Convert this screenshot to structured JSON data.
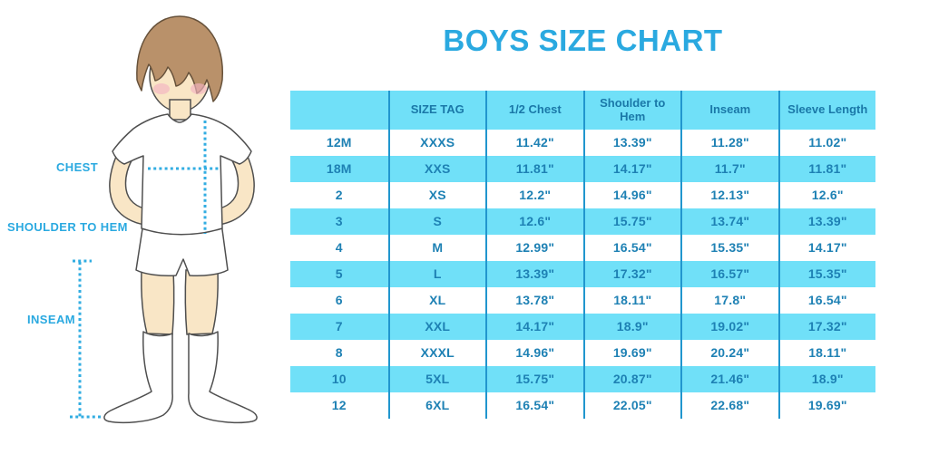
{
  "title": "BOYS SIZE CHART",
  "figure": {
    "illustration": "boy-in-white-tshirt-shorts-and-knee-socks",
    "labels": {
      "chest": "CHEST",
      "shoulder_to_hem": "SHOULDER TO HEM",
      "inseam": "INSEAM"
    }
  },
  "table": {
    "columns": [
      "",
      "SIZE TAG",
      "1/2 Chest",
      "Shoulder to Hem",
      "Inseam",
      "Sleeve Length"
    ],
    "rows": [
      [
        "12M",
        "XXXS",
        "11.42\"",
        "13.39\"",
        "11.28\"",
        "11.02\""
      ],
      [
        "18M",
        "XXS",
        "11.81\"",
        "14.17\"",
        "11.7\"",
        "11.81\""
      ],
      [
        "2",
        "XS",
        "12.2\"",
        "14.96\"",
        "12.13\"",
        "12.6\""
      ],
      [
        "3",
        "S",
        "12.6\"",
        "15.75\"",
        "13.74\"",
        "13.39\""
      ],
      [
        "4",
        "M",
        "12.99\"",
        "16.54\"",
        "15.35\"",
        "14.17\""
      ],
      [
        "5",
        "L",
        "13.39\"",
        "17.32\"",
        "16.57\"",
        "15.35\""
      ],
      [
        "6",
        "XL",
        "13.78\"",
        "18.11\"",
        "17.8\"",
        "16.54\""
      ],
      [
        "7",
        "XXL",
        "14.17\"",
        "18.9\"",
        "19.02\"",
        "17.32\""
      ],
      [
        "8",
        "XXXL",
        "14.96\"",
        "19.69\"",
        "20.24\"",
        "18.11\""
      ],
      [
        "10",
        "5XL",
        "15.75\"",
        "20.87\"",
        "21.46\"",
        "18.9\""
      ],
      [
        "12",
        "6XL",
        "16.54\"",
        "22.05\"",
        "22.68\"",
        "19.69\""
      ]
    ]
  },
  "chart_data": {
    "type": "table",
    "title": "BOYS SIZE CHART",
    "columns": [
      "",
      "SIZE TAG",
      "1/2 Chest",
      "Shoulder to Hem",
      "Inseam",
      "Sleeve Length"
    ],
    "unit": "inches",
    "rows": [
      [
        "12M",
        "XXXS",
        "11.42\"",
        "13.39\"",
        "11.28\"",
        "11.02\""
      ],
      [
        "18M",
        "XXS",
        "11.81\"",
        "14.17\"",
        "11.7\"",
        "11.81\""
      ],
      [
        "2",
        "XS",
        "12.2\"",
        "14.96\"",
        "12.13\"",
        "12.6\""
      ],
      [
        "3",
        "S",
        "12.6\"",
        "15.75\"",
        "13.74\"",
        "13.39\""
      ],
      [
        "4",
        "M",
        "12.99\"",
        "16.54\"",
        "15.35\"",
        "14.17\""
      ],
      [
        "5",
        "L",
        "13.39\"",
        "17.32\"",
        "16.57\"",
        "15.35\""
      ],
      [
        "6",
        "XL",
        "13.78\"",
        "18.11\"",
        "17.8\"",
        "16.54\""
      ],
      [
        "7",
        "XXL",
        "14.17\"",
        "18.9\"",
        "19.02\"",
        "17.32\""
      ],
      [
        "8",
        "XXXL",
        "14.96\"",
        "19.69\"",
        "20.24\"",
        "18.11\""
      ],
      [
        "10",
        "5XL",
        "15.75\"",
        "20.87\"",
        "21.46\"",
        "18.9\""
      ],
      [
        "12",
        "6XL",
        "16.54\"",
        "22.05\"",
        "22.68\"",
        "19.69\""
      ]
    ]
  },
  "colors": {
    "accent_blue": "#2AA9E0",
    "stripe_cyan": "#70E0F8",
    "separator_blue": "#2196CE",
    "header_text_blue": "#1A78A8",
    "cell_text_blue": "#1E81B4",
    "dotted_line_blue": "#32ADE2",
    "skin": "#F9E6C6",
    "hair": "#B9916A",
    "cheek_pink": "#F3B3C2"
  }
}
